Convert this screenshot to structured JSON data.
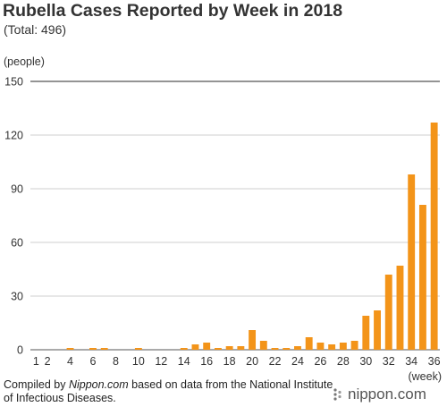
{
  "chart_data": {
    "type": "bar",
    "title": "Rubella Cases Reported by Week in 2018",
    "subtitle": "(Total: 496)",
    "ylabel": "(people)",
    "xlabel": "(week)",
    "ylim": [
      0,
      150
    ],
    "yticks": [
      0,
      30,
      60,
      90,
      120,
      150
    ],
    "x_tick_labels": [
      "1",
      "2",
      "4",
      "6",
      "8",
      "10",
      "12",
      "14",
      "16",
      "18",
      "20",
      "22",
      "24",
      "26",
      "28",
      "30",
      "32",
      "34",
      "36"
    ],
    "categories": [
      1,
      2,
      3,
      4,
      5,
      6,
      7,
      8,
      9,
      10,
      11,
      12,
      13,
      14,
      15,
      16,
      17,
      18,
      19,
      20,
      21,
      22,
      23,
      24,
      25,
      26,
      27,
      28,
      29,
      30,
      31,
      32,
      33,
      34,
      35,
      36
    ],
    "values": [
      0,
      0,
      0,
      1,
      0,
      1,
      1,
      0,
      0,
      1,
      0,
      0,
      0,
      1,
      3,
      4,
      1,
      2,
      2,
      11,
      5,
      1,
      1,
      2,
      7,
      4,
      3,
      4,
      5,
      19,
      22,
      42,
      47,
      98,
      81,
      127
    ],
    "bar_color": "#f39419",
    "grid": true
  },
  "footer": {
    "prefix": "Compiled by ",
    "source_name": "Nippon.com",
    "suffix": " based on data from the National Institute of Infectious Diseases."
  },
  "brand": {
    "text": "nippon.com"
  }
}
